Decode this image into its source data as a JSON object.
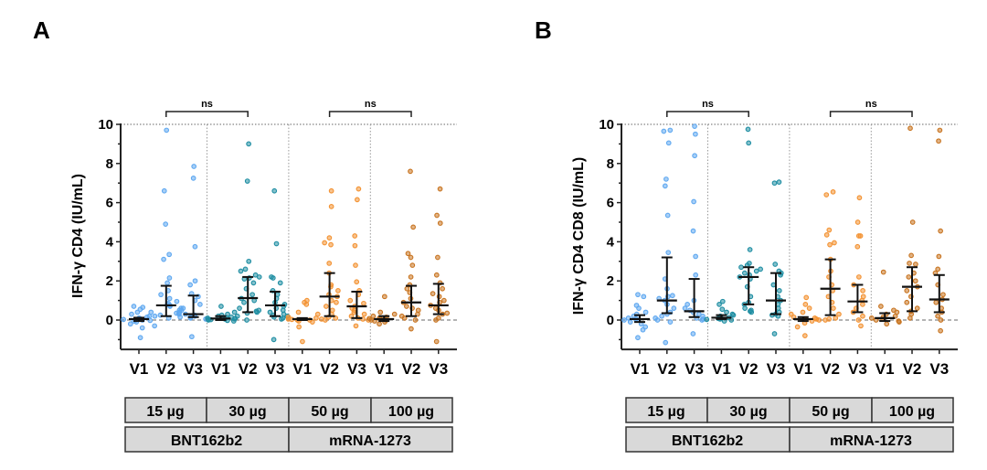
{
  "colors": {
    "group_15ug": "#5fa8f0",
    "group_30ug": "#1f8ea3",
    "group_50ug": "#f39232",
    "group_100ug": "#c87420",
    "box_fill": "#d9d9d9",
    "box_border": "#333333",
    "error_bar": "#111111"
  },
  "legend_boxes": {
    "doses": [
      "15 µg",
      "30  µg",
      "50  µg",
      "100 µg"
    ],
    "vaccines": [
      "BNT162b2",
      "mRNA-1273"
    ]
  },
  "chart_data": [
    {
      "type": "scatter",
      "panel": "A",
      "title": "",
      "ylabel": "IFN-γ CD4 (IU/mL)",
      "xlabel": "",
      "ylim": [
        -1.5,
        10
      ],
      "yticks": [
        0,
        2,
        4,
        6,
        8,
        10
      ],
      "grid": false,
      "categories": [
        "V1",
        "V2",
        "V3",
        "V1",
        "V2",
        "V3",
        "V1",
        "V2",
        "V3",
        "V1",
        "V2",
        "V3"
      ],
      "groups": [
        "15 µg",
        "30  µg",
        "50  µg",
        "100 µg"
      ],
      "significance": [
        {
          "from": 1,
          "to": 4,
          "label": "ns"
        },
        {
          "from": 7,
          "to": 10,
          "label": "ns"
        }
      ],
      "series": [
        {
          "name": "15 µg V1",
          "group": 0,
          "median": 0.05,
          "q1": -0.05,
          "q3": 0.12,
          "values": [
            0.7,
            0.65,
            0.55,
            0.4,
            0.3,
            0.2,
            0.15,
            0.1,
            0.08,
            0.05,
            0.03,
            0.02,
            0.0,
            0.0,
            -0.02,
            -0.05,
            -0.1,
            -0.2,
            -0.3,
            -0.4,
            -0.9
          ]
        },
        {
          "name": "15 µg V2",
          "group": 0,
          "median": 0.75,
          "q1": 0.2,
          "q3": 1.75,
          "values": [
            9.7,
            6.6,
            4.9,
            3.35,
            3.1,
            2.15,
            1.9,
            1.5,
            1.3,
            1.1,
            0.95,
            0.85,
            0.8,
            0.75,
            0.7,
            0.6,
            0.5,
            0.4,
            0.35,
            0.3,
            0.25,
            0.2,
            0.15,
            0.1
          ]
        },
        {
          "name": "15 µg V3",
          "group": 0,
          "median": 0.3,
          "q1": 0.15,
          "q3": 1.25,
          "values": [
            7.85,
            7.25,
            3.75,
            2.0,
            1.8,
            1.35,
            1.2,
            1.0,
            0.8,
            0.6,
            0.5,
            0.4,
            0.35,
            0.3,
            0.25,
            0.2,
            0.15,
            0.1,
            0.05,
            -0.85
          ]
        },
        {
          "name": "30 µg V1",
          "group": 1,
          "median": 0.08,
          "q1": 0.0,
          "q3": 0.2,
          "values": [
            0.7,
            0.4,
            0.3,
            0.25,
            0.2,
            0.15,
            0.12,
            0.1,
            0.08,
            0.06,
            0.05,
            0.03,
            0.02,
            0.0,
            -0.02,
            -0.05
          ]
        },
        {
          "name": "30 µg V2",
          "group": 1,
          "median": 1.12,
          "q1": 0.4,
          "q3": 2.2,
          "values": [
            9.0,
            7.1,
            3.0,
            2.6,
            2.5,
            2.3,
            2.2,
            2.15,
            2.1,
            1.9,
            1.6,
            1.3,
            1.1,
            1.0,
            0.9,
            0.6,
            0.5,
            0.45,
            0.4,
            0.35,
            0.2,
            0.0
          ]
        },
        {
          "name": "30 µg V3",
          "group": 1,
          "median": 0.75,
          "q1": 0.2,
          "q3": 1.45,
          "values": [
            6.6,
            3.9,
            2.2,
            2.15,
            1.9,
            1.5,
            1.3,
            1.1,
            0.9,
            0.8,
            0.7,
            0.6,
            0.5,
            0.4,
            0.3,
            0.25,
            0.2,
            0.15,
            0.1,
            0.05,
            -1.0
          ]
        },
        {
          "name": "50 µg V1",
          "group": 2,
          "median": 0.05,
          "q1": 0.0,
          "q3": 0.1,
          "values": [
            1.0,
            0.9,
            0.8,
            0.4,
            0.3,
            0.15,
            0.1,
            0.05,
            0.03,
            0.0,
            0.0,
            -0.05,
            -0.1,
            -0.35,
            -1.1
          ]
        },
        {
          "name": "50 µg V2",
          "group": 2,
          "median": 1.2,
          "q1": 0.2,
          "q3": 2.4,
          "values": [
            6.6,
            5.8,
            4.2,
            3.95,
            3.85,
            2.9,
            2.4,
            1.8,
            1.7,
            1.5,
            1.3,
            1.2,
            1.0,
            0.9,
            0.7,
            0.5,
            0.3,
            0.15,
            0.1,
            0.05,
            0.0
          ]
        },
        {
          "name": "50 µg V3",
          "group": 2,
          "median": 0.7,
          "q1": 0.1,
          "q3": 1.45,
          "values": [
            6.7,
            6.15,
            4.3,
            3.8,
            2.8,
            1.95,
            1.5,
            1.3,
            1.0,
            0.85,
            0.7,
            0.6,
            0.5,
            0.4,
            0.3,
            0.2,
            0.1,
            0.05,
            0.0,
            -0.3
          ]
        },
        {
          "name": "100 µg V1",
          "group": 3,
          "median": 0.05,
          "q1": -0.05,
          "q3": 0.2,
          "values": [
            1.2,
            0.4,
            0.3,
            0.2,
            0.15,
            0.1,
            0.08,
            0.05,
            0.03,
            0.0,
            0.0,
            -0.05,
            -0.1,
            -0.2
          ]
        },
        {
          "name": "100 µg V2",
          "group": 3,
          "median": 0.9,
          "q1": 0.2,
          "q3": 1.75,
          "values": [
            7.6,
            4.75,
            3.4,
            3.2,
            2.8,
            2.2,
            1.8,
            1.6,
            1.4,
            1.1,
            0.9,
            0.7,
            0.6,
            0.5,
            0.3,
            0.2,
            0.1,
            0.0,
            -0.45
          ]
        },
        {
          "name": "100 µg V3",
          "group": 3,
          "median": 0.75,
          "q1": 0.3,
          "q3": 1.85,
          "values": [
            6.7,
            5.35,
            4.95,
            3.2,
            2.3,
            1.9,
            1.6,
            1.35,
            1.2,
            1.0,
            0.9,
            0.75,
            0.6,
            0.5,
            0.35,
            0.3,
            0.1,
            0.0,
            -1.1
          ]
        }
      ]
    },
    {
      "type": "scatter",
      "panel": "B",
      "title": "",
      "ylabel": "IFN-γ CD4 CD8 (IU/mL)",
      "xlabel": "",
      "ylim": [
        -1.5,
        10
      ],
      "yticks": [
        0,
        2,
        4,
        6,
        8,
        10
      ],
      "grid": false,
      "categories": [
        "V1",
        "V2",
        "V3",
        "V1",
        "V2",
        "V3",
        "V1",
        "V2",
        "V3",
        "V1",
        "V2",
        "V3"
      ],
      "groups": [
        "15 µg",
        "30  µg",
        "50  µg",
        "100 µg"
      ],
      "significance": [
        {
          "from": 1,
          "to": 4,
          "label": "ns"
        },
        {
          "from": 7,
          "to": 10,
          "label": "ns"
        }
      ],
      "series": [
        {
          "name": "15 µg V1",
          "group": 0,
          "median": 0.05,
          "q1": -0.1,
          "q3": 0.25,
          "values": [
            1.3,
            1.2,
            0.75,
            0.6,
            0.4,
            0.3,
            0.2,
            0.1,
            0.05,
            0.0,
            0.0,
            -0.1,
            -0.2,
            -0.35,
            -0.5,
            -0.9
          ]
        },
        {
          "name": "15 µg V2",
          "group": 0,
          "median": 1.0,
          "q1": 0.35,
          "q3": 3.2,
          "values": [
            9.7,
            9.65,
            9.05,
            7.2,
            6.85,
            5.35,
            3.45,
            2.1,
            1.6,
            1.25,
            1.2,
            1.1,
            1.0,
            0.8,
            0.6,
            0.4,
            0.3,
            0.2,
            0.1,
            0.0,
            -0.1,
            -1.15
          ]
        },
        {
          "name": "15 µg V3",
          "group": 0,
          "median": 0.45,
          "q1": 0.15,
          "q3": 2.1,
          "values": [
            9.9,
            9.5,
            8.4,
            6.05,
            4.55,
            3.25,
            2.3,
            1.0,
            0.8,
            0.6,
            0.5,
            0.4,
            0.3,
            0.2,
            0.1,
            0.05,
            0.0,
            -0.7
          ]
        },
        {
          "name": "30 µg V1",
          "group": 1,
          "median": 0.12,
          "q1": 0.05,
          "q3": 0.25,
          "values": [
            0.95,
            0.8,
            0.55,
            0.4,
            0.3,
            0.25,
            0.2,
            0.15,
            0.12,
            0.1,
            0.08,
            0.05,
            0.03,
            0.0,
            -0.05
          ]
        },
        {
          "name": "30 µg V2",
          "group": 1,
          "median": 2.2,
          "q1": 0.8,
          "q3": 2.7,
          "values": [
            9.75,
            9.05,
            3.6,
            2.9,
            2.8,
            2.7,
            2.6,
            2.5,
            2.4,
            2.3,
            2.2,
            2.1,
            1.7,
            1.2,
            0.9,
            0.8,
            0.6,
            0.5,
            0.45,
            0.4
          ]
        },
        {
          "name": "30 µg V3",
          "group": 1,
          "median": 1.0,
          "q1": 0.3,
          "q3": 2.4,
          "values": [
            7.05,
            7.0,
            2.85,
            2.5,
            2.4,
            2.3,
            1.8,
            1.5,
            1.2,
            1.0,
            0.8,
            0.6,
            0.4,
            0.3,
            0.25,
            0.2,
            -0.7
          ]
        },
        {
          "name": "50 µg V1",
          "group": 2,
          "median": 0.05,
          "q1": -0.05,
          "q3": 0.15,
          "values": [
            1.15,
            0.8,
            0.6,
            0.4,
            0.3,
            0.15,
            0.1,
            0.05,
            0.02,
            0.0,
            -0.05,
            -0.15,
            -0.35,
            -0.8
          ]
        },
        {
          "name": "50 µg V2",
          "group": 2,
          "median": 1.6,
          "q1": 0.25,
          "q3": 3.1,
          "values": [
            6.55,
            6.4,
            4.6,
            4.35,
            3.95,
            3.85,
            3.1,
            2.5,
            2.2,
            1.8,
            1.5,
            1.2,
            0.9,
            0.6,
            0.3,
            0.1,
            0.05,
            0.0
          ]
        },
        {
          "name": "50 µg V3",
          "group": 2,
          "median": 0.95,
          "q1": 0.4,
          "q3": 1.8,
          "values": [
            6.25,
            5.0,
            4.3,
            4.3,
            3.75,
            2.2,
            1.8,
            1.5,
            1.2,
            1.0,
            0.8,
            0.6,
            0.4,
            0.2,
            0.0,
            -0.3
          ]
        },
        {
          "name": "100 µg V1",
          "group": 3,
          "median": 0.1,
          "q1": -0.05,
          "q3": 0.35,
          "values": [
            2.45,
            0.7,
            0.5,
            0.4,
            0.3,
            0.2,
            0.15,
            0.1,
            0.05,
            0.0,
            -0.05,
            -0.1,
            -0.2
          ]
        },
        {
          "name": "100 µg V2",
          "group": 3,
          "median": 1.7,
          "q1": 0.45,
          "q3": 2.7,
          "values": [
            9.8,
            5.0,
            3.3,
            2.9,
            2.85,
            2.4,
            2.2,
            2.0,
            1.7,
            1.5,
            1.2,
            0.9,
            0.6,
            0.45,
            0.3,
            0.1
          ]
        },
        {
          "name": "100 µg V3",
          "group": 3,
          "median": 1.05,
          "q1": 0.4,
          "q3": 2.3,
          "values": [
            9.7,
            9.15,
            4.55,
            3.25,
            2.6,
            2.4,
            1.8,
            1.3,
            1.05,
            0.9,
            0.6,
            0.4,
            0.2,
            0.0,
            -0.55
          ]
        }
      ]
    }
  ]
}
